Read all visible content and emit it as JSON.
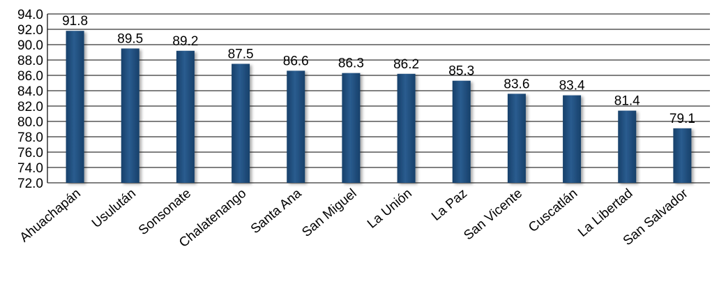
{
  "chart_data": {
    "type": "bar",
    "title": "",
    "xlabel": "",
    "ylabel": "",
    "categories": [
      "Ahuachapán",
      "Usulután",
      "Sonsonate",
      "Chalatenango",
      "Santa Ana",
      "San Miguel",
      "La Unión",
      "La Paz",
      "San Vicente",
      "Cuscatlán",
      "La Libertad",
      "San Salvador"
    ],
    "values": [
      91.8,
      89.5,
      89.2,
      87.5,
      86.6,
      86.3,
      86.2,
      85.3,
      83.6,
      83.4,
      81.4,
      79.1
    ],
    "value_labels": [
      "91.8",
      "89.5",
      "89.2",
      "87.5",
      "86.6",
      "86.3",
      "86.2",
      "85.3",
      "83.6",
      "83.4",
      "81.4",
      "79.1"
    ],
    "ylim": [
      72.0,
      94.0
    ],
    "y_ticks": [
      "72.0",
      "74.0",
      "76.0",
      "78.0",
      "80.0",
      "82.0",
      "84.0",
      "86.0",
      "88.0",
      "90.0",
      "92.0",
      "94.0"
    ],
    "grid": true,
    "legend": "none",
    "bar_color": "#1f4e79"
  }
}
